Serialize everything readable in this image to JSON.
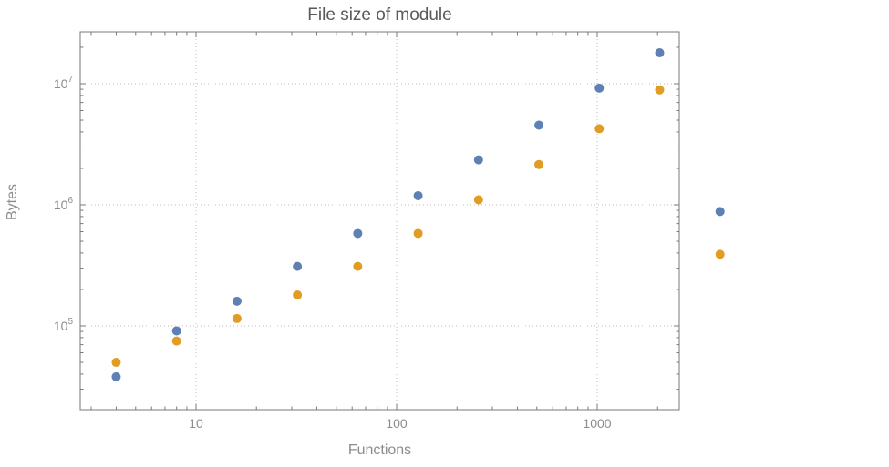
{
  "chart_data": {
    "type": "scatter",
    "title": "File size of module",
    "xlabel": "Functions",
    "ylabel": "Bytes",
    "x_scale": "log",
    "y_scale": "log",
    "xlim": [
      2.7,
      2550
    ],
    "ylim": [
      21000,
      27000000
    ],
    "x_ticks": [
      10,
      100,
      1000
    ],
    "y_ticks": [
      100000,
      1000000,
      10000000
    ],
    "grid": true,
    "legend": "none",
    "x": [
      4,
      8,
      16,
      32,
      64,
      128,
      256,
      512,
      1024,
      2048,
      4096
    ],
    "series": [
      {
        "name": "series-1",
        "color": "#5e81b5",
        "values": [
          38000,
          91000,
          160000,
          310000,
          580000,
          1190000,
          2350000,
          4550000,
          9200000,
          18000000,
          880000
        ]
      },
      {
        "name": "series-2",
        "color": "#e19c24",
        "values": [
          50000,
          75000,
          115000,
          180000,
          310000,
          580000,
          1100000,
          2150000,
          4250000,
          8900000,
          390000
        ]
      }
    ],
    "colors": {
      "background": "#ffffff",
      "frame": "#7a7a7a",
      "grid": "#bdbdbd",
      "tick_label": "#8c8c8c",
      "axis_label": "#8c8c8c",
      "title": "#595959"
    }
  }
}
